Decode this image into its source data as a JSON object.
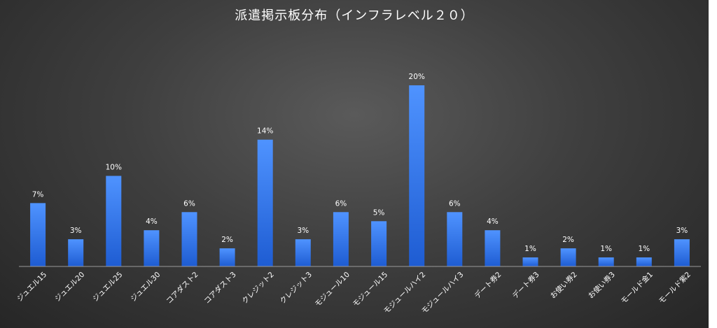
{
  "chart_data": {
    "type": "bar",
    "title": "派遣掲示板分布（インフラレベル２０）",
    "categories": [
      "ジュエル15",
      "ジュエル20",
      "ジュエル25",
      "ジュエル30",
      "コアダスト2",
      "コアダスト3",
      "クレジット2",
      "クレジット3",
      "モジュール10",
      "モジュール15",
      "モジュールハイ2",
      "モジュールハイ3",
      "デート券2",
      "デート券3",
      "お使い券2",
      "お使い券3",
      "モールド金1",
      "モールド紫2"
    ],
    "values": [
      7,
      3,
      10,
      4,
      6,
      2,
      14,
      3,
      6,
      5,
      20,
      6,
      4,
      1,
      2,
      1,
      1,
      3
    ],
    "value_labels": [
      "7%",
      "3%",
      "10%",
      "4%",
      "6%",
      "2%",
      "14%",
      "3%",
      "6%",
      "5%",
      "20%",
      "6%",
      "4%",
      "1%",
      "2%",
      "1%",
      "1%",
      "3%"
    ],
    "xlabel": "",
    "ylabel": "",
    "ylim": [
      0,
      20
    ],
    "grid": false,
    "legend": "none",
    "bar_color_top": "#4a90ff",
    "bar_color_bottom": "#1f5fd6",
    "background": "#3a3a3a"
  }
}
